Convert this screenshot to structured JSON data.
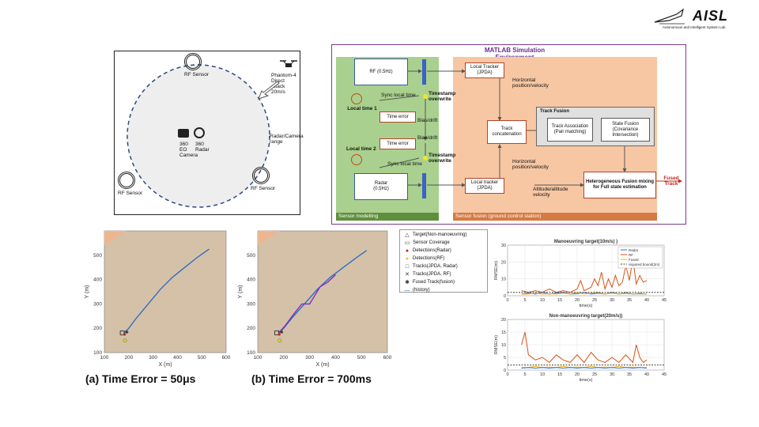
{
  "logo": {
    "text": "AISL",
    "subtitle": "Autonomous and Intelligent System Lab"
  },
  "scenario": {
    "rf_sensor_label": "RF Sensor",
    "camera_label": "360 EO Camera",
    "radar_label": "360 Radar",
    "range_label": "Radar/Camera range",
    "drone_label": "Phantom-4 Direct attack 20m/s"
  },
  "sim": {
    "title": "MATLAB Simulation Environment",
    "rf_box": "RF (0.5Hz)",
    "radar_box": "Radar (0.5Hz)",
    "local_time_1": "Local time 1",
    "local_time_2": "Local time 2",
    "sync_local_time_top": "Sync local time",
    "sync_local_time_bottom": "Sync local time",
    "time_error_1": "Time error",
    "time_error_2": "Time error",
    "bias_drift_1": "Bias/drift",
    "bias_drift_2": "Bias/drift",
    "timestamp_top": "Timestamp overwrite",
    "timestamp_bottom": "Timestamp overwrite",
    "local_tracker_top": "Local Tracker (JPDA)",
    "local_tracker_bottom": "Local tracker (JPDA)",
    "horizontal_pv_top": "Horizontal position/velocity",
    "horizontal_pv_bottom": "Horizontal position/velocity",
    "altitude_velocity": "Altitude/altitude velocity",
    "track_concat": "Track concatenation",
    "track_fusion_title": "Track Fusion",
    "track_association": "Track Association (Pair matching)",
    "state_fusion": "State Fusion (Covariance Intersection)",
    "hetero_fusion": "Heterogeneous Fusion mixing for Full state estimation",
    "fused_track": "Fused Track",
    "sensor_modelling": "Sensor modelling",
    "sensor_fusion": "Sensor fusion (ground control station)"
  },
  "legend": {
    "items": [
      {
        "symbol": "△",
        "label": "Target(Non-manoeuvring)",
        "color": "#333333"
      },
      {
        "symbol": "▭",
        "label": "Sensor Coverage",
        "color": "#333333"
      },
      {
        "symbol": "●",
        "label": "Detections(Radar)",
        "color": "#c0281e"
      },
      {
        "symbol": "●",
        "label": "Detections(RF)",
        "color": "#e0d020"
      },
      {
        "symbol": "□",
        "label": "Tracks(JPDA, Radar)",
        "color": "#333333"
      },
      {
        "symbol": "✕",
        "label": "Tracks(JPDA, RF)",
        "color": "#333333"
      },
      {
        "symbol": "✱",
        "label": "Fused Track(fusion)",
        "color": "#333333"
      },
      {
        "symbol": "—",
        "label": "(history)",
        "color": "#2f6fbf"
      }
    ]
  },
  "captions": {
    "a": "(a) Time Error = 50μs",
    "b": "(b) Time Error = 700ms"
  },
  "chart_data": [
    {
      "type": "line",
      "title": "",
      "xlabel": "X (m)",
      "ylabel": "Y (m)",
      "xlim": [
        100,
        600
      ],
      "ylim": [
        100,
        600
      ],
      "xticks": [
        "100",
        "200",
        "300",
        "400",
        "500",
        "600"
      ],
      "yticks": [
        "100",
        "200",
        "300",
        "400",
        "500"
      ],
      "series": [
        {
          "x": [
            180,
            200,
            230,
            280,
            330,
            380,
            430,
            480,
            530
          ],
          "y": [
            180,
            200,
            240,
            300,
            360,
            410,
            450,
            490,
            525
          ],
          "color": "#2f6fbf"
        }
      ]
    },
    {
      "type": "line",
      "title": "",
      "xlabel": "X (m)",
      "ylabel": "Y (m)",
      "xlim": [
        100,
        600
      ],
      "ylim": [
        100,
        600
      ],
      "xticks": [
        "100",
        "200",
        "300",
        "400",
        "500",
        "600"
      ],
      "yticks": [
        "100",
        "200",
        "300",
        "400",
        "500"
      ],
      "series": [
        {
          "x": [
            180,
            200,
            230,
            280,
            330,
            380,
            430,
            480,
            520
          ],
          "y": [
            180,
            200,
            240,
            300,
            360,
            410,
            450,
            490,
            520
          ],
          "color": "#2f6fbf"
        },
        {
          "x": [
            180,
            205,
            240,
            270,
            300,
            340,
            370,
            400
          ],
          "y": [
            180,
            210,
            260,
            300,
            300,
            370,
            390,
            420
          ],
          "color": "#8030c0"
        }
      ]
    },
    {
      "type": "line",
      "title": "Manoeuvring target(10m/s) )",
      "xlabel": "time(s)",
      "ylabel": "RMSE(m)",
      "xlim": [
        0,
        45
      ],
      "ylim": [
        0,
        30
      ],
      "xticks": [
        "0",
        "5",
        "10",
        "15",
        "20",
        "25",
        "30",
        "35",
        "40",
        "45"
      ],
      "yticks": [
        "0",
        "10",
        "20",
        "30"
      ],
      "legend": [
        "Radar",
        "RF",
        "Fused",
        "required bound(2m)"
      ],
      "series": [
        {
          "name": "Radar",
          "color": "#2f6fbf",
          "x": [
            4,
            6,
            8,
            10,
            12,
            14,
            16,
            18,
            20,
            22,
            24,
            26,
            28,
            30,
            32,
            34,
            36,
            38,
            40
          ],
          "y": [
            1,
            1.5,
            1,
            2,
            1,
            1.5,
            2,
            1,
            1.2,
            2,
            1,
            1.5,
            1,
            2,
            1,
            1.5,
            1,
            1.2,
            1
          ]
        },
        {
          "name": "RF",
          "color": "#d95319",
          "x": [
            4,
            6,
            8,
            10,
            12,
            14,
            16,
            18,
            20,
            21,
            22,
            24,
            25,
            26,
            27,
            28,
            29,
            30,
            31,
            32,
            33,
            34,
            35,
            36,
            37,
            38,
            39,
            40
          ],
          "y": [
            3,
            2,
            3,
            2,
            4,
            2,
            3,
            2,
            4,
            9,
            3,
            5,
            10,
            6,
            14,
            4,
            10,
            5,
            12,
            6,
            8,
            18,
            9,
            22,
            7,
            12,
            8,
            9
          ]
        },
        {
          "name": "Fused",
          "color": "#edb120",
          "x": [
            4,
            6,
            8,
            10,
            12,
            14,
            16,
            18,
            20,
            22,
            24,
            26,
            28,
            30,
            32,
            34,
            36,
            38,
            40
          ],
          "y": [
            1,
            1,
            1.5,
            1,
            1.2,
            1,
            1.5,
            1,
            2,
            1,
            1.5,
            2,
            1,
            1.5,
            1,
            2,
            1,
            1.5,
            1
          ]
        },
        {
          "name": "required bound(2m)",
          "color": "#444444",
          "dashed": true,
          "x": [
            0,
            45
          ],
          "y": [
            2,
            2
          ]
        }
      ]
    },
    {
      "type": "line",
      "title": "Non-manoeuvring target(20m/s))",
      "xlabel": "time(s)",
      "ylabel": "RMSE(m)",
      "xlim": [
        0,
        45
      ],
      "ylim": [
        0,
        20
      ],
      "xticks": [
        "0",
        "5",
        "10",
        "15",
        "20",
        "25",
        "30",
        "35",
        "40",
        "45"
      ],
      "yticks": [
        "0",
        "5",
        "10",
        "15",
        "20"
      ],
      "series": [
        {
          "name": "RF",
          "color": "#d95319",
          "x": [
            4,
            5,
            6,
            8,
            10,
            12,
            14,
            16,
            18,
            20,
            22,
            24,
            26,
            28,
            30,
            32,
            34,
            36,
            37,
            38,
            39,
            40
          ],
          "y": [
            10,
            15,
            6,
            4,
            5,
            3,
            6,
            4,
            3,
            6,
            3,
            7,
            4,
            3,
            5,
            3,
            6,
            3,
            10,
            5,
            3,
            4
          ]
        },
        {
          "name": "Fused",
          "color": "#edb120",
          "x": [
            4,
            6,
            8,
            10,
            12,
            14,
            16,
            18,
            20,
            22,
            24,
            26,
            28,
            30,
            32,
            34,
            36,
            38,
            40
          ],
          "y": [
            1,
            1,
            1.5,
            1,
            1.2,
            1,
            1.5,
            1,
            1.2,
            1,
            1.5,
            1,
            1.2,
            1,
            1.5,
            1,
            1.2,
            1,
            1
          ]
        },
        {
          "name": "Radar",
          "color": "#2f6fbf",
          "x": [
            4,
            6,
            8,
            10,
            12,
            14,
            16,
            18,
            20,
            22,
            24,
            26,
            28,
            30,
            32,
            34,
            36,
            38,
            40
          ],
          "y": [
            0.8,
            1,
            0.8,
            1,
            0.8,
            1,
            0.8,
            1,
            0.8,
            1,
            0.8,
            1,
            0.8,
            1,
            0.8,
            1,
            0.8,
            1,
            0.8
          ]
        },
        {
          "name": "required bound(2m)",
          "color": "#444444",
          "dashed": true,
          "x": [
            0,
            45
          ],
          "y": [
            2,
            2
          ]
        }
      ]
    }
  ]
}
